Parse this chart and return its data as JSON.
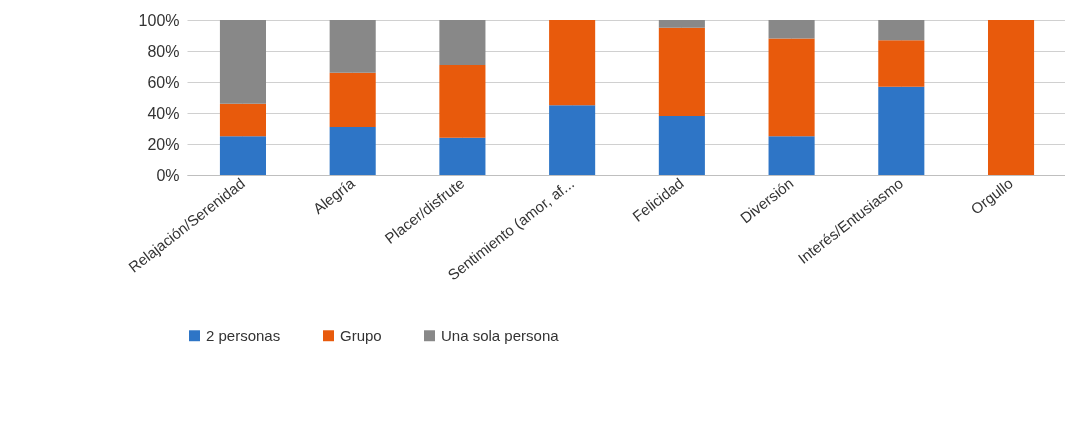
{
  "chart_data": {
    "type": "bar",
    "stacked": true,
    "categories": [
      "Relajación/Serenidad",
      "Alegría",
      "Placer/disfrute",
      "Sentimiento (amor, af...",
      "Felicidad",
      "Diversión",
      "Interés/Entusiasmo",
      "Orgullo"
    ],
    "series": [
      {
        "name": "2 personas",
        "color": "#2e75c6",
        "values": [
          25,
          31,
          24,
          45,
          38,
          25,
          57,
          0
        ]
      },
      {
        "name": "Grupo",
        "color": "#e85a0c",
        "values": [
          21,
          35,
          47,
          55,
          57,
          63,
          30,
          100
        ]
      },
      {
        "name": "Una sola persona",
        "color": "#888888",
        "values": [
          54,
          34,
          29,
          0,
          5,
          12,
          13,
          0
        ]
      }
    ],
    "ylim": [
      0,
      100
    ],
    "yticks": [
      {
        "value": 0,
        "label": "0%"
      },
      {
        "value": 20,
        "label": "20%"
      },
      {
        "value": 40,
        "label": "40%"
      },
      {
        "value": 60,
        "label": "60%"
      },
      {
        "value": 80,
        "label": "80%"
      },
      {
        "value": 100,
        "label": "100%"
      }
    ],
    "grid": true,
    "legend": "bottom"
  }
}
